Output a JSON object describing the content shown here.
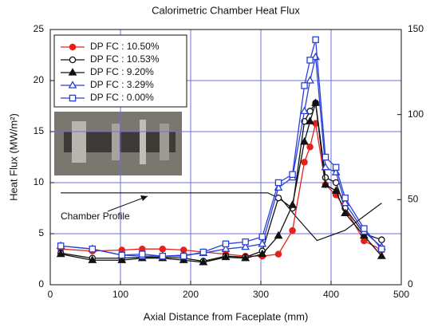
{
  "chart_data": {
    "type": "line",
    "title": "Calorimetric Chamber Heat Flux",
    "x_label": "Axial Distance from Faceplate (mm)",
    "y_label": "Heat Flux (MW/m²)",
    "x": [
      15,
      60,
      102,
      131,
      160,
      190,
      218,
      250,
      278,
      302,
      325,
      345,
      362,
      370,
      378,
      392,
      407,
      420,
      447,
      472
    ],
    "series": [
      {
        "name": "DP FC : 10.50%",
        "color": "#e8201c",
        "marker": "circle",
        "filled": true,
        "values": [
          3.5,
          3.3,
          3.4,
          3.5,
          3.5,
          3.4,
          3.2,
          3.0,
          2.8,
          2.8,
          3.0,
          5.3,
          12.0,
          13.5,
          15.8,
          9.8,
          8.8,
          7.5,
          4.3,
          3.4
        ]
      },
      {
        "name": "DP FC : 10.53%",
        "color": "#111111",
        "marker": "circle",
        "filled": false,
        "values": [
          3.1,
          2.6,
          2.6,
          2.7,
          2.7,
          2.6,
          2.3,
          2.8,
          2.7,
          3.3,
          8.5,
          7.5,
          16.0,
          17.0,
          17.8,
          10.5,
          10.0,
          7.5,
          5.0,
          4.4
        ]
      },
      {
        "name": "DP FC : 9.20%",
        "color": "#111111",
        "marker": "triangle",
        "filled": true,
        "values": [
          3.0,
          2.4,
          2.4,
          2.6,
          2.6,
          2.4,
          2.2,
          2.7,
          2.6,
          3.0,
          4.8,
          7.8,
          14.0,
          16.0,
          17.8,
          9.8,
          9.2,
          7.0,
          4.8,
          2.8
        ]
      },
      {
        "name": "DP FC : 3.29%",
        "color": "#2a3fd6",
        "marker": "triangle",
        "filled": false,
        "values": [
          3.8,
          3.5,
          2.9,
          2.8,
          2.8,
          2.9,
          3.1,
          3.5,
          3.7,
          4.0,
          9.5,
          10.5,
          17.0,
          20.0,
          22.3,
          11.5,
          11.0,
          8.0,
          5.2,
          3.7
        ]
      },
      {
        "name": "DP FC : 0.00%",
        "color": "#2a3fd6",
        "marker": "square",
        "filled": false,
        "values": [
          3.8,
          3.5,
          2.9,
          3.0,
          2.8,
          2.8,
          3.2,
          4.0,
          4.2,
          4.7,
          10.0,
          10.8,
          19.5,
          22.0,
          24.0,
          12.5,
          11.5,
          8.5,
          5.5,
          3.5
        ]
      }
    ],
    "profile": {
      "name": "Chamber Profile",
      "color": "#111111",
      "axis": "y2",
      "x": [
        15,
        310,
        330,
        350,
        380,
        420,
        472
      ],
      "values": [
        54,
        54,
        50,
        40,
        26,
        32,
        48
      ]
    },
    "xlim": [
      0,
      500
    ],
    "xticks": [
      0,
      100,
      200,
      300,
      400,
      500
    ],
    "ylim": [
      0,
      25
    ],
    "yticks": [
      0,
      5,
      10,
      15,
      20,
      25
    ],
    "y2lim": [
      0,
      150
    ],
    "y2ticks": [
      0,
      50,
      100,
      150
    ],
    "grid": true
  }
}
